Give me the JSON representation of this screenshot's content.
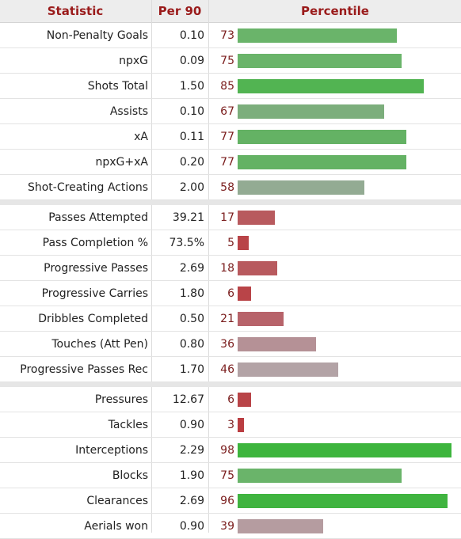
{
  "header": {
    "statistic": "Statistic",
    "per90": "Per 90",
    "percentile": "Percentile"
  },
  "chart_data": {
    "type": "bar",
    "percentile_max": 100,
    "groups": [
      [
        {
          "label": "Non-Penalty Goals",
          "per90": "0.10",
          "percentile": 73,
          "color": "#6ab46a"
        },
        {
          "label": "npxG",
          "per90": "0.09",
          "percentile": 75,
          "color": "#6ab46a"
        },
        {
          "label": "Shots Total",
          "per90": "1.50",
          "percentile": 85,
          "color": "#52b452"
        },
        {
          "label": "Assists",
          "per90": "0.10",
          "percentile": 67,
          "color": "#7cae7c"
        },
        {
          "label": "xA",
          "per90": "0.11",
          "percentile": 77,
          "color": "#64b264"
        },
        {
          "label": "npxG+xA",
          "per90": "0.20",
          "percentile": 77,
          "color": "#64b264"
        },
        {
          "label": "Shot-Creating Actions",
          "per90": "2.00",
          "percentile": 58,
          "color": "#93ab93"
        }
      ],
      [
        {
          "label": "Passes Attempted",
          "per90": "39.21",
          "percentile": 17,
          "color": "#b85a5e"
        },
        {
          "label": "Pass Completion %",
          "per90": "73.5%",
          "percentile": 5,
          "color": "#b94448"
        },
        {
          "label": "Progressive Passes",
          "per90": "2.69",
          "percentile": 18,
          "color": "#b85a5e"
        },
        {
          "label": "Progressive Carries",
          "per90": "1.80",
          "percentile": 6,
          "color": "#b94448"
        },
        {
          "label": "Dribbles Completed",
          "per90": "0.50",
          "percentile": 21,
          "color": "#b7636a"
        },
        {
          "label": "Touches (Att Pen)",
          "per90": "0.80",
          "percentile": 36,
          "color": "#b59196"
        },
        {
          "label": "Progressive Passes Rec",
          "per90": "1.70",
          "percentile": 46,
          "color": "#b3a3a6"
        }
      ],
      [
        {
          "label": "Pressures",
          "per90": "12.67",
          "percentile": 6,
          "color": "#b94448"
        },
        {
          "label": "Tackles",
          "per90": "0.90",
          "percentile": 3,
          "color": "#ba3d41"
        },
        {
          "label": "Interceptions",
          "per90": "2.29",
          "percentile": 98,
          "color": "#3db53d"
        },
        {
          "label": "Blocks",
          "per90": "1.90",
          "percentile": 75,
          "color": "#6ab46a"
        },
        {
          "label": "Clearances",
          "per90": "2.69",
          "percentile": 96,
          "color": "#40b440"
        },
        {
          "label": "Aerials won",
          "per90": "0.90",
          "percentile": 39,
          "color": "#b59ca0"
        }
      ]
    ]
  }
}
